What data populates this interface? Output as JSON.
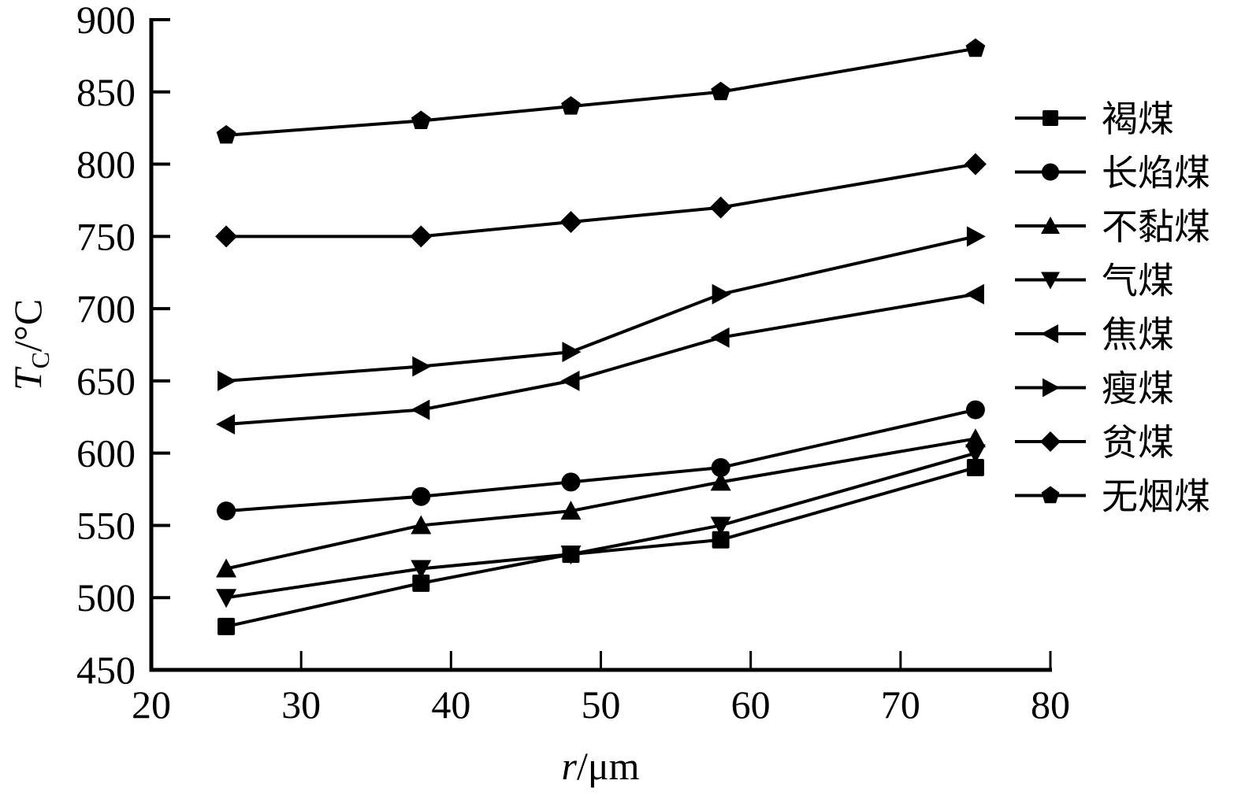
{
  "chart_data": {
    "type": "line",
    "title": "",
    "xlabel": "r/μm",
    "xlabel_parts": {
      "var": "r",
      "unit": "/μm"
    },
    "ylabel": "T_C/°C",
    "ylabel_parts": {
      "var": "T",
      "sub": "C",
      "unit": "/°C"
    },
    "xlim": [
      20,
      80
    ],
    "ylim": [
      450,
      900
    ],
    "xticks": [
      20,
      30,
      40,
      50,
      60,
      70,
      80
    ],
    "yticks": [
      450,
      500,
      550,
      600,
      650,
      700,
      750,
      800,
      850,
      900
    ],
    "grid": false,
    "legend_position": "right",
    "x": [
      25,
      38,
      48,
      58,
      75
    ],
    "series": [
      {
        "name": "褐煤",
        "marker": "square",
        "values": [
          480,
          510,
          530,
          540,
          590
        ]
      },
      {
        "name": "长焰煤",
        "marker": "circle",
        "values": [
          560,
          570,
          580,
          590,
          630
        ]
      },
      {
        "name": "不黏煤",
        "marker": "triangle-up",
        "values": [
          520,
          550,
          560,
          580,
          610
        ]
      },
      {
        "name": "气煤",
        "marker": "triangle-down",
        "values": [
          500,
          520,
          530,
          550,
          600
        ]
      },
      {
        "name": "焦煤",
        "marker": "triangle-left",
        "values": [
          620,
          630,
          650,
          680,
          710
        ]
      },
      {
        "name": "瘦煤",
        "marker": "triangle-right",
        "values": [
          650,
          660,
          670,
          710,
          750
        ]
      },
      {
        "name": "贫煤",
        "marker": "diamond",
        "values": [
          750,
          750,
          760,
          770,
          800
        ]
      },
      {
        "name": "无烟煤",
        "marker": "pentagon",
        "values": [
          820,
          830,
          840,
          850,
          880
        ]
      }
    ]
  },
  "style": {
    "line_color": "#000000",
    "background": "#ffffff"
  }
}
